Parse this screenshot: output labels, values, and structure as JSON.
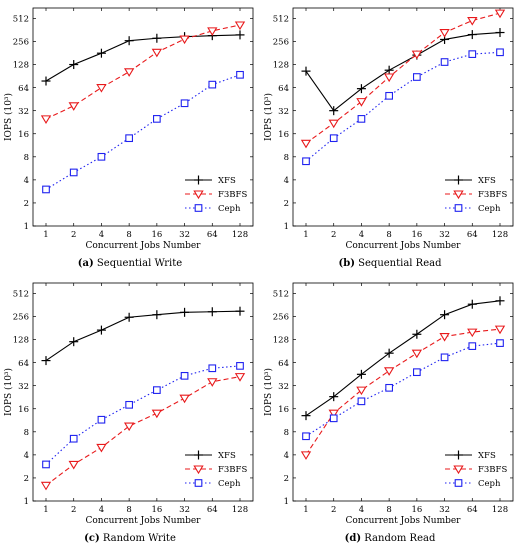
{
  "chart_data": [
    {
      "type": "line",
      "panel_label": "(a)",
      "caption": "Sequential Write",
      "xlabel": "Concurrent Jobs Number",
      "ylabel": "IOPS (10³)",
      "y_scale": "log2",
      "ylim": [
        1,
        700
      ],
      "categories": [
        "1",
        "2",
        "4",
        "8",
        "16",
        "32",
        "64",
        "128"
      ],
      "yticks": [
        "1",
        "2",
        "4",
        "8",
        "16",
        "32",
        "64",
        "128",
        "256",
        "512"
      ],
      "legend_position": "bottom-right",
      "grid": false,
      "series": [
        {
          "name": "XFS",
          "color": "#000000",
          "dash": "solid",
          "marker": "plus",
          "values": [
            78,
            128,
            180,
            262,
            282,
            296,
            305,
            312
          ]
        },
        {
          "name": "F3BFS",
          "color": "#e8191b",
          "dash": "dashed",
          "marker": "triangle-down",
          "values": [
            25,
            37,
            64,
            103,
            185,
            275,
            352,
            420
          ]
        },
        {
          "name": "Ceph",
          "color": "#1f22f0",
          "dash": "dotted",
          "marker": "square",
          "values": [
            3,
            5,
            8,
            14,
            25,
            40,
            70,
            94
          ]
        }
      ]
    },
    {
      "type": "line",
      "panel_label": "(b)",
      "caption": "Sequential Read",
      "xlabel": "Concurrent Jobs Number",
      "ylabel": "IOPS (10³)",
      "y_scale": "log2",
      "ylim": [
        1,
        700
      ],
      "categories": [
        "1",
        "2",
        "4",
        "8",
        "16",
        "32",
        "64",
        "128"
      ],
      "yticks": [
        "1",
        "2",
        "4",
        "8",
        "16",
        "32",
        "64",
        "128",
        "256",
        "512"
      ],
      "legend_position": "bottom-right",
      "grid": false,
      "series": [
        {
          "name": "XFS",
          "color": "#000000",
          "dash": "solid",
          "marker": "plus",
          "values": [
            105,
            32,
            62,
            108,
            170,
            272,
            315,
            335
          ]
        },
        {
          "name": "F3BFS",
          "color": "#e8191b",
          "dash": "dashed",
          "marker": "triangle-down",
          "values": [
            12,
            22,
            42,
            88,
            175,
            335,
            480,
            600
          ]
        },
        {
          "name": "Ceph",
          "color": "#1f22f0",
          "dash": "dotted",
          "marker": "square",
          "values": [
            7,
            14,
            25,
            50,
            88,
            138,
            175,
            185
          ]
        }
      ]
    },
    {
      "type": "line",
      "panel_label": "(c)",
      "caption": "Random Write",
      "xlabel": "Concurrent Jobs Number",
      "ylabel": "IOPS (10³)",
      "y_scale": "log2",
      "ylim": [
        1,
        700
      ],
      "categories": [
        "1",
        "2",
        "4",
        "8",
        "16",
        "32",
        "64",
        "128"
      ],
      "yticks": [
        "1",
        "2",
        "4",
        "8",
        "16",
        "32",
        "64",
        "128",
        "256",
        "512"
      ],
      "legend_position": "bottom-right",
      "grid": false,
      "series": [
        {
          "name": "XFS",
          "color": "#000000",
          "dash": "solid",
          "marker": "plus",
          "values": [
            68,
            120,
            170,
            250,
            270,
            290,
            295,
            300
          ]
        },
        {
          "name": "F3BFS",
          "color": "#e8191b",
          "dash": "dashed",
          "marker": "triangle-down",
          "values": [
            1.6,
            3,
            5,
            9.5,
            14,
            22,
            36,
            42
          ]
        },
        {
          "name": "Ceph",
          "color": "#1f22f0",
          "dash": "dotted",
          "marker": "square",
          "values": [
            3,
            6.5,
            11.5,
            18,
            28,
            43,
            54,
            58
          ]
        }
      ]
    },
    {
      "type": "line",
      "panel_label": "(d)",
      "caption": "Random Read",
      "xlabel": "Concurrent Jobs Number",
      "ylabel": "IOPS (10³)",
      "y_scale": "log2",
      "ylim": [
        1,
        700
      ],
      "categories": [
        "1",
        "2",
        "4",
        "8",
        "16",
        "32",
        "64",
        "128"
      ],
      "yticks": [
        "1",
        "2",
        "4",
        "8",
        "16",
        "32",
        "64",
        "128",
        "256",
        "512"
      ],
      "legend_position": "bottom-right",
      "grid": false,
      "series": [
        {
          "name": "XFS",
          "color": "#000000",
          "dash": "solid",
          "marker": "plus",
          "values": [
            13,
            23,
            45,
            85,
            150,
            270,
            370,
            410
          ]
        },
        {
          "name": "F3BFS",
          "color": "#e8191b",
          "dash": "dashed",
          "marker": "triangle-down",
          "values": [
            4,
            14,
            28,
            50,
            85,
            140,
            160,
            175
          ]
        },
        {
          "name": "Ceph",
          "color": "#1f22f0",
          "dash": "dotted",
          "marker": "square",
          "values": [
            7,
            12,
            20,
            30,
            48,
            75,
            105,
            115
          ]
        }
      ]
    }
  ]
}
